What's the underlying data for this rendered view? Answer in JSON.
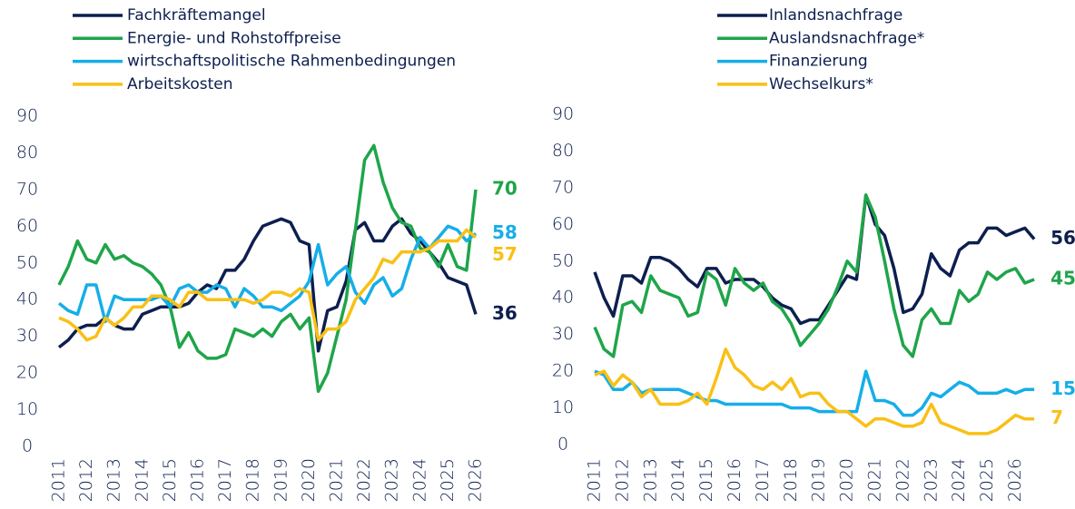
{
  "chart_data": [
    {
      "type": "line",
      "categories": [
        "2011",
        null,
        null,
        "2012",
        null,
        null,
        "2013",
        null,
        null,
        "2014",
        null,
        null,
        "2015",
        null,
        null,
        "2016",
        null,
        null,
        "2017",
        null,
        null,
        "2018",
        null,
        null,
        "2019",
        null,
        null,
        "2020",
        null,
        null,
        "2021",
        null,
        null,
        "2022",
        null,
        null,
        "2023",
        null,
        null,
        "2024",
        null,
        null,
        "2025",
        null,
        null,
        "2026"
      ],
      "series": [
        {
          "name": "Fachkräftemangel",
          "color": "#0d1f4f",
          "values": [
            27,
            29,
            32,
            33,
            33,
            35,
            33,
            32,
            32,
            36,
            37,
            38,
            38,
            38,
            39,
            42,
            44,
            43,
            48,
            48,
            51,
            56,
            60,
            61,
            62,
            61,
            56,
            55,
            26,
            37,
            38,
            45,
            59,
            61,
            56,
            56,
            60,
            62,
            58,
            56,
            53,
            50,
            46,
            45,
            44,
            36
          ]
        },
        {
          "name": "Energie- und Rohstoffpreise",
          "color": "#1fa54a",
          "values": [
            44,
            49,
            56,
            51,
            50,
            55,
            51,
            52,
            50,
            49,
            47,
            44,
            38,
            27,
            31,
            26,
            24,
            24,
            25,
            32,
            31,
            30,
            32,
            30,
            34,
            36,
            32,
            35,
            15,
            20,
            30,
            40,
            59,
            78,
            82,
            72,
            65,
            61,
            60,
            54,
            53,
            49,
            55,
            49,
            48,
            70
          ]
        },
        {
          "name": "wirtschaftspolitische Rahmenbedingungen",
          "color": "#16aee8",
          "values": [
            39,
            37,
            36,
            44,
            44,
            34,
            41,
            40,
            40,
            40,
            40,
            41,
            38,
            43,
            44,
            42,
            42,
            44,
            43,
            38,
            43,
            41,
            38,
            38,
            37,
            39,
            41,
            45,
            55,
            44,
            47,
            49,
            42,
            39,
            44,
            46,
            41,
            43,
            51,
            57,
            54,
            57,
            60,
            59,
            56,
            58
          ]
        },
        {
          "name": "Arbeitskosten",
          "color": "#f9c015",
          "values": [
            35,
            34,
            32,
            29,
            30,
            35,
            33,
            35,
            38,
            38,
            41,
            41,
            40,
            38,
            42,
            42,
            40,
            40,
            40,
            40,
            40,
            39,
            40,
            42,
            42,
            41,
            43,
            42,
            29,
            32,
            32,
            34,
            40,
            43,
            46,
            51,
            50,
            53,
            53,
            53,
            54,
            56,
            56,
            56,
            59,
            57
          ]
        }
      ],
      "ylim": [
        0,
        90
      ],
      "yticks": [
        0,
        10,
        20,
        30,
        40,
        50,
        60,
        70,
        80,
        90
      ],
      "end_labels": true
    },
    {
      "type": "line",
      "categories": [
        "2011",
        null,
        null,
        "2012",
        null,
        null,
        "2013",
        null,
        null,
        "2014",
        null,
        null,
        "2015",
        null,
        null,
        "2016",
        null,
        null,
        "2017",
        null,
        null,
        "2018",
        null,
        null,
        "2019",
        null,
        null,
        "2020",
        null,
        null,
        "2021",
        null,
        null,
        "2022",
        null,
        null,
        "2023",
        null,
        null,
        "2024",
        null,
        null,
        "2025",
        null,
        null,
        "2026",
        null,
        null
      ],
      "series": [
        {
          "name": "Inlandsnachfrage",
          "color": "#0d1f4f",
          "values": [
            47,
            40,
            35,
            46,
            46,
            44,
            51,
            51,
            50,
            48,
            45,
            43,
            48,
            48,
            44,
            45,
            45,
            45,
            43,
            40,
            38,
            37,
            33,
            34,
            34,
            38,
            42,
            46,
            45,
            68,
            60,
            57,
            48,
            36,
            37,
            41,
            52,
            48,
            46,
            53,
            55,
            55,
            59,
            59,
            57,
            58,
            59,
            56
          ]
        },
        {
          "name": "Auslandsnachfrage*",
          "color": "#1fa54a",
          "values": [
            32,
            26,
            24,
            38,
            39,
            36,
            46,
            42,
            41,
            40,
            35,
            36,
            47,
            45,
            38,
            48,
            44,
            42,
            44,
            39,
            37,
            33,
            27,
            30,
            33,
            37,
            43,
            50,
            47,
            68,
            62,
            50,
            37,
            27,
            24,
            34,
            37,
            33,
            33,
            42,
            39,
            41,
            47,
            45,
            47,
            48,
            44,
            45
          ]
        },
        {
          "name": "Finanzierung",
          "color": "#16aee8",
          "values": [
            20,
            19,
            15,
            15,
            17,
            14,
            15,
            15,
            15,
            15,
            14,
            13,
            12,
            12,
            11,
            11,
            11,
            11,
            11,
            11,
            11,
            10,
            10,
            10,
            9,
            9,
            9,
            9,
            9,
            20,
            12,
            12,
            11,
            8,
            8,
            10,
            14,
            13,
            15,
            17,
            16,
            14,
            14,
            14,
            15,
            14,
            15,
            15
          ]
        },
        {
          "name": "Wechselkurs*",
          "color": "#f9c015",
          "values": [
            19,
            20,
            16,
            19,
            17,
            13,
            15,
            11,
            11,
            11,
            12,
            14,
            11,
            18,
            26,
            21,
            19,
            16,
            15,
            17,
            15,
            18,
            13,
            14,
            14,
            11,
            9,
            9,
            7,
            5,
            7,
            7,
            6,
            5,
            5,
            6,
            11,
            6,
            5,
            4,
            3,
            3,
            3,
            4,
            6,
            8,
            7,
            7
          ]
        }
      ],
      "ylim": [
        0,
        90
      ],
      "yticks": [
        0,
        10,
        20,
        30,
        40,
        50,
        60,
        70,
        80,
        90
      ],
      "end_labels": true
    }
  ]
}
